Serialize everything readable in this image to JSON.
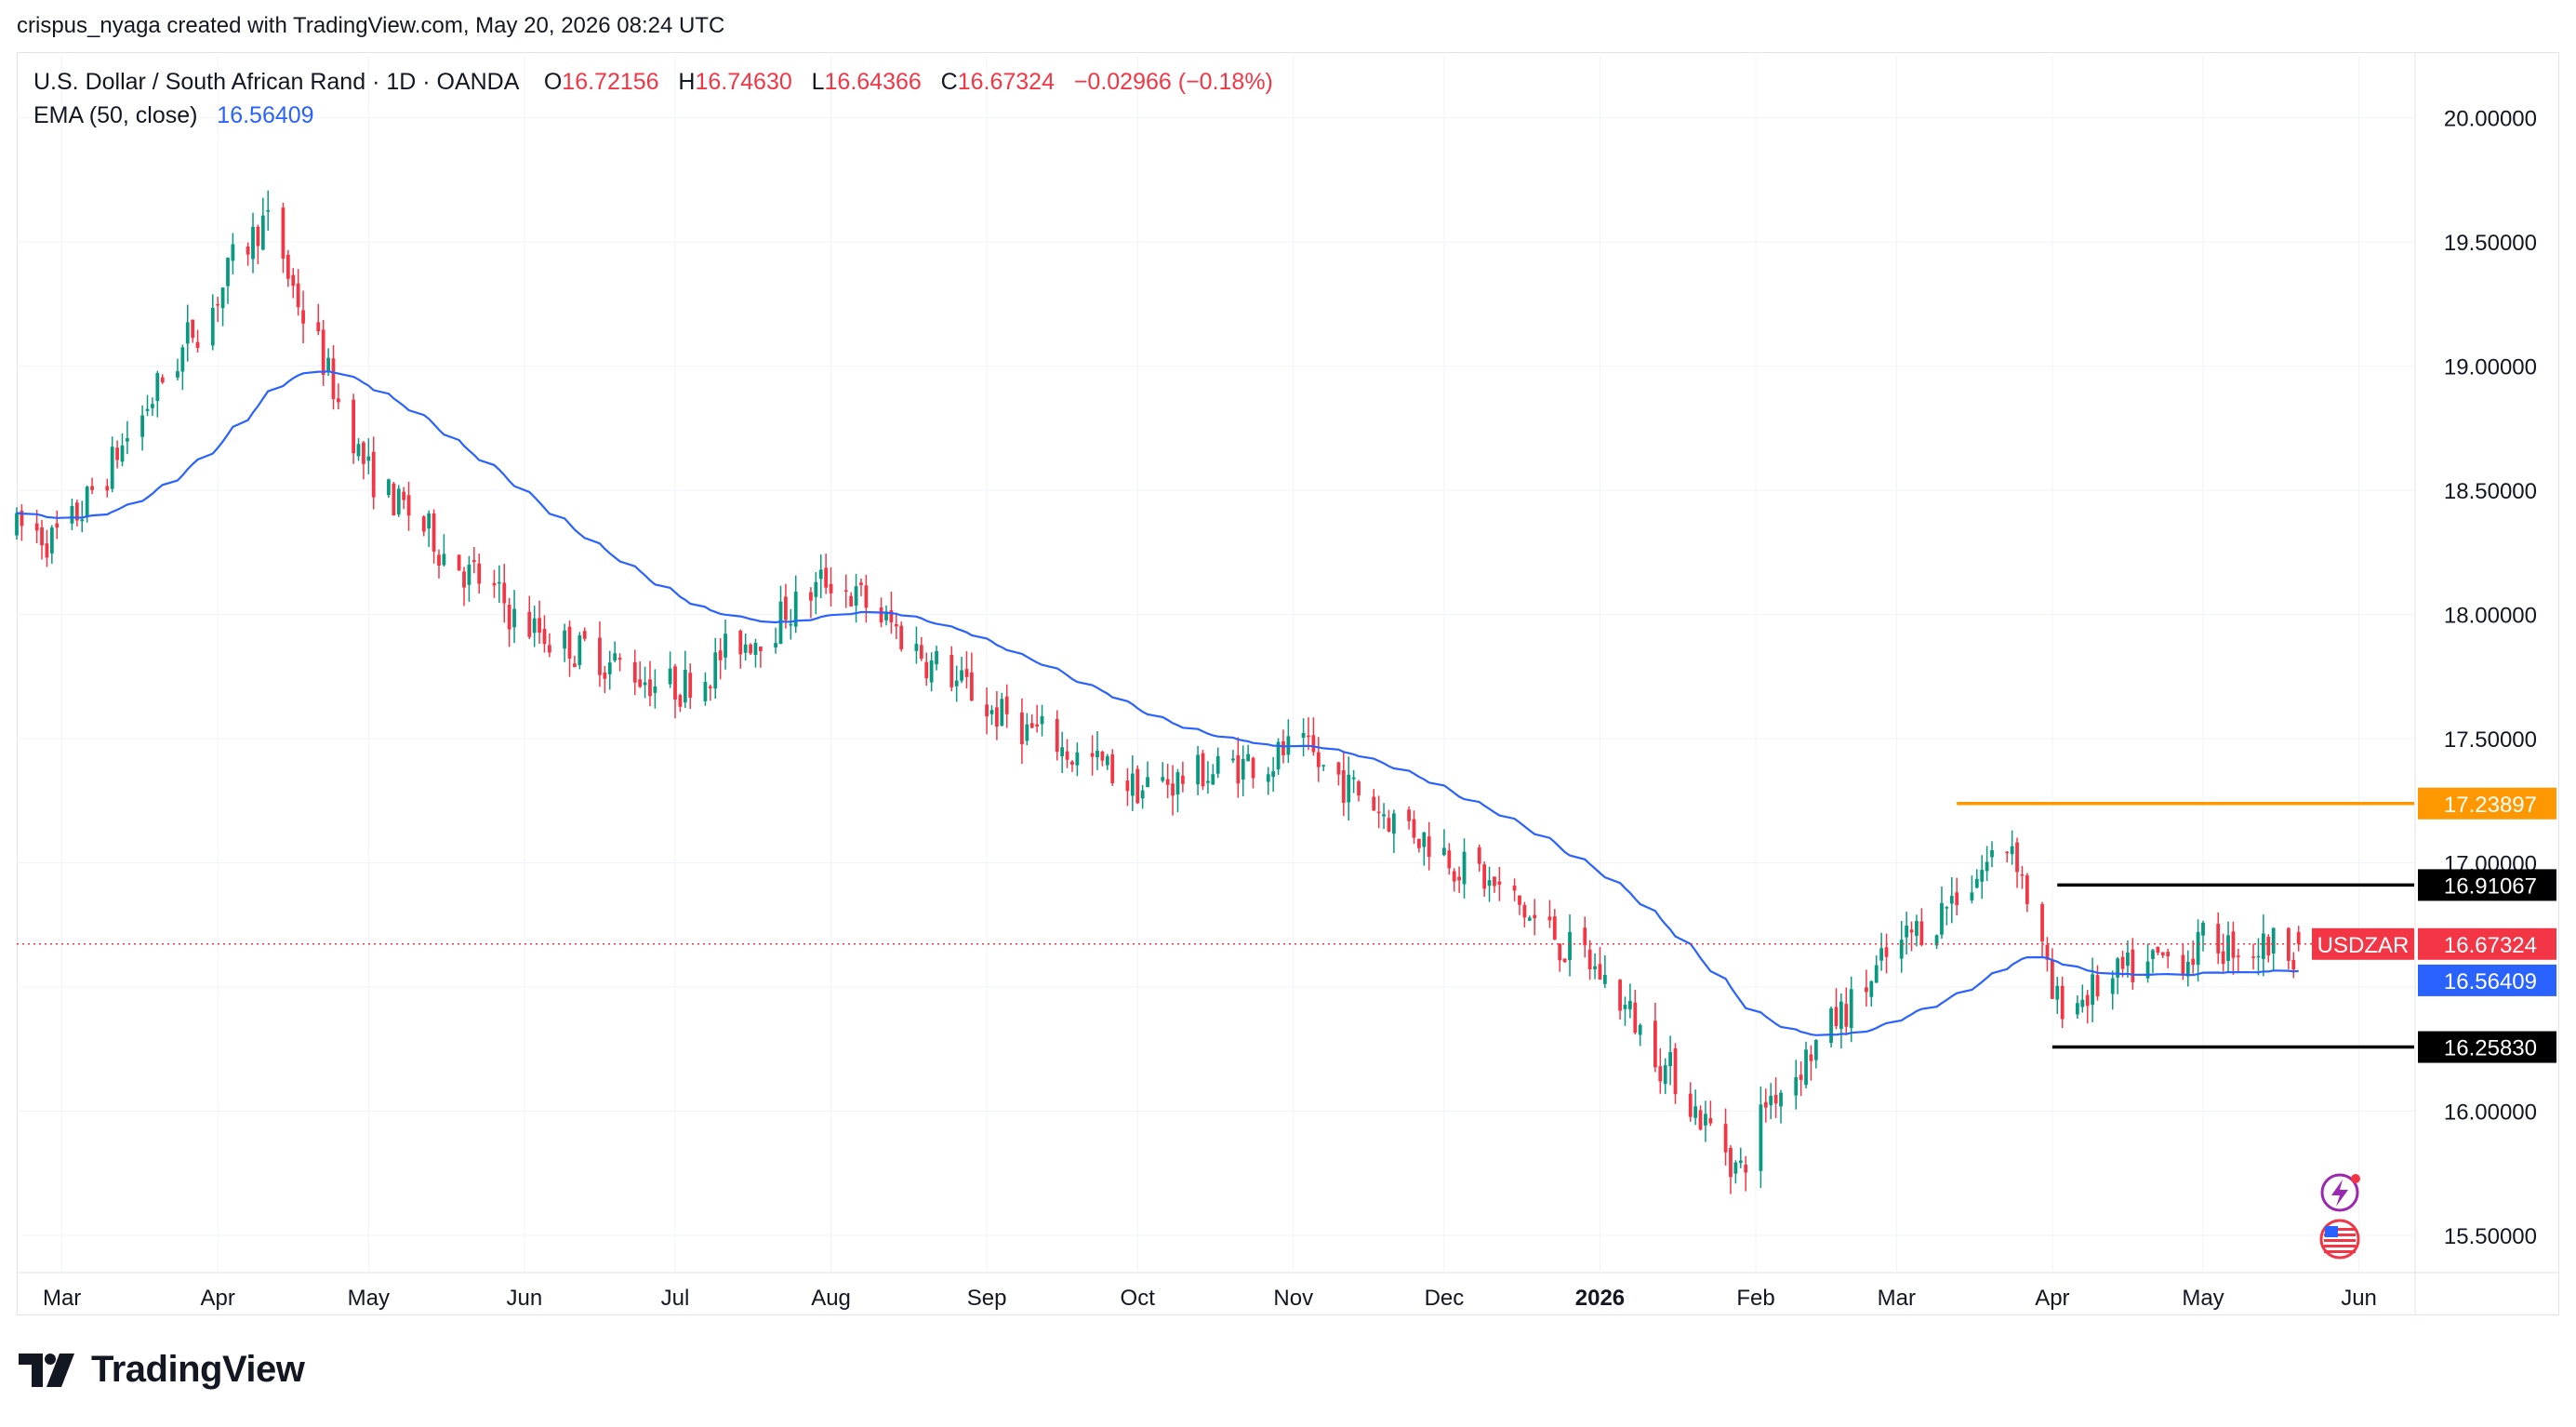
{
  "credit": "crispus_nyaga created with TradingView.com, May 20, 2026 08:24 UTC",
  "legend": {
    "symbol": "U.S. Dollar / South African Rand · 1D · OANDA",
    "o_label": "O",
    "o_value": "16.72156",
    "h_label": "H",
    "h_value": "16.74630",
    "l_label": "L",
    "l_value": "16.64366",
    "c_label": "C",
    "c_value": "16.67324",
    "change": "−0.02966 (−0.18%)",
    "ema_label": "EMA (50, close)",
    "ema_value": "16.56409"
  },
  "colors": {
    "up": "#089981",
    "down": "#f23645",
    "ema": "#2962ff",
    "resistance_line": "#ff9800",
    "level_line": "#000000",
    "grid": "#f0f3fa",
    "axis_text": "#131722"
  },
  "brand": {
    "icon": "tradingview-logo-icon",
    "name": "TradingView"
  },
  "side_icons": [
    "lightning-icon",
    "us-flag-icon"
  ],
  "chart_data": {
    "type": "candlestick",
    "symbol_tag": "USDZAR",
    "ylim": [
      15.35,
      20.25
    ],
    "y_ticks": [
      "15.50000",
      "16.00000",
      "16.50000",
      "17.00000",
      "17.50000",
      "18.00000",
      "18.50000",
      "19.00000",
      "19.50000",
      "20.00000"
    ],
    "x_ticks": [
      "Mar",
      "Apr",
      "May",
      "Jun",
      "Jul",
      "Aug",
      "Sep",
      "Oct",
      "Nov",
      "Dec",
      "2026",
      "Feb",
      "Mar",
      "Apr",
      "May",
      "Jun"
    ],
    "last_price": "16.67324",
    "ema_last": "16.56409",
    "horizontal_levels": [
      {
        "value": 17.23897,
        "label": "17.23897",
        "color": "#ff9800",
        "from": "2026-03-13"
      },
      {
        "value": 16.91067,
        "label": "16.91067",
        "color": "#000000",
        "from": "2026-04-02"
      },
      {
        "value": 16.2583,
        "label": "16.25830",
        "color": "#000000",
        "from": "2026-04-01"
      }
    ],
    "monthly_path": [
      {
        "month": "2025-02",
        "value": 18.42
      },
      {
        "month": "2025-03",
        "value": 18.3
      },
      {
        "month": "2025-04-10",
        "value": 19.6
      },
      {
        "month": "2025-05",
        "value": 18.55
      },
      {
        "month": "2025-06",
        "value": 17.95
      },
      {
        "month": "2025-07",
        "value": 17.7
      },
      {
        "month": "2025-08-01",
        "value": 18.15
      },
      {
        "month": "2025-09",
        "value": 17.62
      },
      {
        "month": "2025-10",
        "value": 17.3
      },
      {
        "month": "2025-11",
        "value": 17.45
      },
      {
        "month": "2025-12",
        "value": 17.05
      },
      {
        "month": "2026-01",
        "value": 16.55
      },
      {
        "month": "2026-01-29",
        "value": 15.75
      },
      {
        "month": "2026-02",
        "value": 16.0
      },
      {
        "month": "2026-03",
        "value": 16.65
      },
      {
        "month": "2026-03-24",
        "value": 17.1
      },
      {
        "month": "2026-04",
        "value": 16.42
      },
      {
        "month": "2026-05",
        "value": 16.67
      }
    ]
  }
}
